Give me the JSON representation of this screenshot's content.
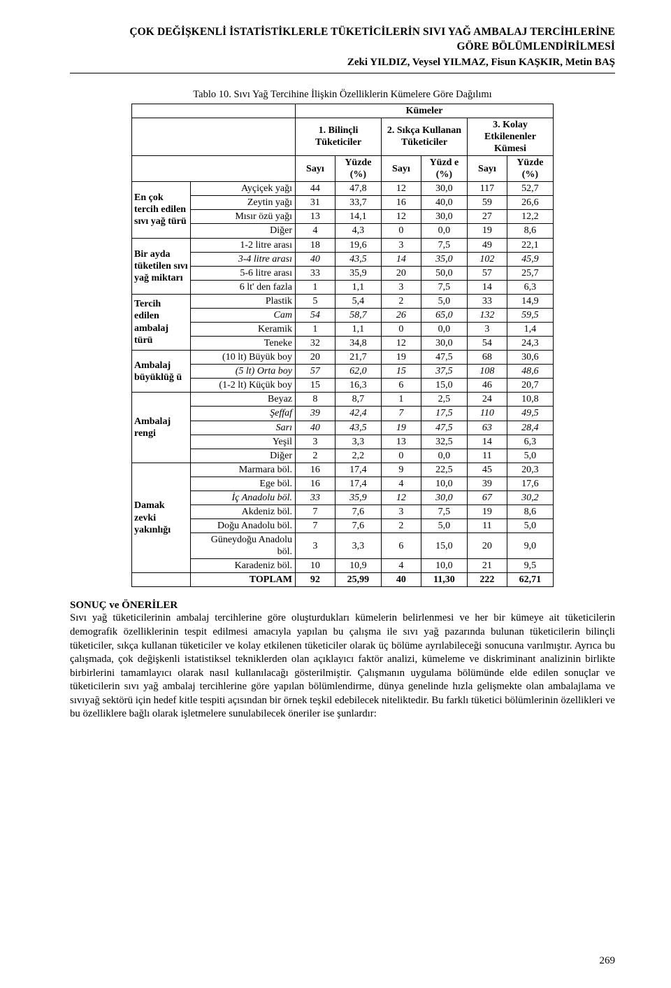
{
  "header": {
    "title_line1": "ÇOK DEĞİŞKENLİ İSTATİSTİKLERLE TÜKETİCİLERİN SIVI YAĞ AMBALAJ TERCİHLERİNE",
    "title_line2": "GÖRE BÖLÜMLENDİRİLMESİ",
    "authors": "Zeki YILDIZ, Veysel YILMAZ, Fisun KAŞKIR, Metin BAŞ"
  },
  "table": {
    "caption": "Tablo 10. Sıvı Yağ Tercihine İlişkin Özelliklerin Kümelere Göre Dağılımı",
    "col_group_header": "Kümeler",
    "cluster_headers": {
      "c1": "1. Bilinçli Tüketiciler",
      "c2": "2. Sıkça Kullanan Tüketiciler",
      "c3": "3. Kolay Etkilenenler Kümesi"
    },
    "subheaders": {
      "sayi": "Sayı",
      "yuzde": "Yüzde (%)",
      "yuzd_e": "Yüzd e (%)"
    },
    "groups": [
      {
        "head": "En çok tercih edilen sıvı yağ türü",
        "rows": [
          {
            "label": "Ayçiçek yağı",
            "v": [
              [
                "44",
                "47,8"
              ],
              [
                "12",
                "30,0"
              ],
              [
                "117",
                "52,7"
              ]
            ]
          },
          {
            "label": "Zeytin yağı",
            "v": [
              [
                "31",
                "33,7"
              ],
              [
                "16",
                "40,0"
              ],
              [
                "59",
                "26,6"
              ]
            ]
          },
          {
            "label": "Mısır özü yağı",
            "v": [
              [
                "13",
                "14,1"
              ],
              [
                "12",
                "30,0"
              ],
              [
                "27",
                "12,2"
              ]
            ]
          },
          {
            "label": "Diğer",
            "v": [
              [
                "4",
                "4,3"
              ],
              [
                "0",
                "0,0"
              ],
              [
                "19",
                "8,6"
              ]
            ]
          }
        ]
      },
      {
        "head": "Bir ayda tüketilen sıvı yağ miktarı",
        "rows": [
          {
            "label": "1-2 litre arası",
            "v": [
              [
                "18",
                "19,6"
              ],
              [
                "3",
                "7,5"
              ],
              [
                "49",
                "22,1"
              ]
            ]
          },
          {
            "label": "3-4 litre arası",
            "italic": true,
            "v": [
              [
                "40",
                "43,5"
              ],
              [
                "14",
                "35,0"
              ],
              [
                "102",
                "45,9"
              ]
            ]
          },
          {
            "label": "5-6 litre arası",
            "v": [
              [
                "33",
                "35,9"
              ],
              [
                "20",
                "50,0"
              ],
              [
                "57",
                "25,7"
              ]
            ]
          },
          {
            "label": "6 lt' den fazla",
            "v": [
              [
                "1",
                "1,1"
              ],
              [
                "3",
                "7,5"
              ],
              [
                "14",
                "6,3"
              ]
            ]
          }
        ]
      },
      {
        "head": "Tercih edilen ambalaj türü",
        "rows": [
          {
            "label": "Plastik",
            "v": [
              [
                "5",
                "5,4"
              ],
              [
                "2",
                "5,0"
              ],
              [
                "33",
                "14,9"
              ]
            ]
          },
          {
            "label": "Cam",
            "italic": true,
            "v": [
              [
                "54",
                "58,7"
              ],
              [
                "26",
                "65,0"
              ],
              [
                "132",
                "59,5"
              ]
            ]
          },
          {
            "label": "Keramik",
            "v": [
              [
                "1",
                "1,1"
              ],
              [
                "0",
                "0,0"
              ],
              [
                "3",
                "1,4"
              ]
            ]
          },
          {
            "label": "Teneke",
            "v": [
              [
                "32",
                "34,8"
              ],
              [
                "12",
                "30,0"
              ],
              [
                "54",
                "24,3"
              ]
            ]
          }
        ]
      },
      {
        "head": "Ambalaj büyüklüğ ü",
        "rows": [
          {
            "label": "(10 lt) Büyük boy",
            "v": [
              [
                "20",
                "21,7"
              ],
              [
                "19",
                "47,5"
              ],
              [
                "68",
                "30,6"
              ]
            ]
          },
          {
            "label": "(5 lt) Orta boy",
            "italic": true,
            "v": [
              [
                "57",
                "62,0"
              ],
              [
                "15",
                "37,5"
              ],
              [
                "108",
                "48,6"
              ]
            ]
          },
          {
            "label": "(1-2 lt) Küçük boy",
            "v": [
              [
                "15",
                "16,3"
              ],
              [
                "6",
                "15,0"
              ],
              [
                "46",
                "20,7"
              ]
            ]
          }
        ]
      },
      {
        "head": "Ambalaj rengi",
        "rows": [
          {
            "label": "Beyaz",
            "v": [
              [
                "8",
                "8,7"
              ],
              [
                "1",
                "2,5"
              ],
              [
                "24",
                "10,8"
              ]
            ]
          },
          {
            "label": "Şeffaf",
            "italic": true,
            "v": [
              [
                "39",
                "42,4"
              ],
              [
                "7",
                "17,5"
              ],
              [
                "110",
                "49,5"
              ]
            ]
          },
          {
            "label": "Sarı",
            "italic": true,
            "v": [
              [
                "40",
                "43,5"
              ],
              [
                "19",
                "47,5"
              ],
              [
                "63",
                "28,4"
              ]
            ]
          },
          {
            "label": "Yeşil",
            "v": [
              [
                "3",
                "3,3"
              ],
              [
                "13",
                "32,5"
              ],
              [
                "14",
                "6,3"
              ]
            ]
          },
          {
            "label": "Diğer",
            "v": [
              [
                "2",
                "2,2"
              ],
              [
                "0",
                "0,0"
              ],
              [
                "11",
                "5,0"
              ]
            ]
          }
        ]
      },
      {
        "head": "Damak zevki yakınlığı",
        "rows": [
          {
            "label": "Marmara böl.",
            "v": [
              [
                "16",
                "17,4"
              ],
              [
                "9",
                "22,5"
              ],
              [
                "45",
                "20,3"
              ]
            ]
          },
          {
            "label": "Ege böl.",
            "v": [
              [
                "16",
                "17,4"
              ],
              [
                "4",
                "10,0"
              ],
              [
                "39",
                "17,6"
              ]
            ]
          },
          {
            "label": "İç Anadolu böl.",
            "italic": true,
            "v": [
              [
                "33",
                "35,9"
              ],
              [
                "12",
                "30,0"
              ],
              [
                "67",
                "30,2"
              ]
            ]
          },
          {
            "label": "Akdeniz böl.",
            "v": [
              [
                "7",
                "7,6"
              ],
              [
                "3",
                "7,5"
              ],
              [
                "19",
                "8,6"
              ]
            ]
          },
          {
            "label": "Doğu Anadolu böl.",
            "v": [
              [
                "7",
                "7,6"
              ],
              [
                "2",
                "5,0"
              ],
              [
                "11",
                "5,0"
              ]
            ]
          },
          {
            "label": "Güneydoğu Anadolu böl.",
            "v": [
              [
                "3",
                "3,3"
              ],
              [
                "6",
                "15,0"
              ],
              [
                "20",
                "9,0"
              ]
            ]
          },
          {
            "label": "Karadeniz böl.",
            "v": [
              [
                "10",
                "10,9"
              ],
              [
                "4",
                "10,0"
              ],
              [
                "21",
                "9,5"
              ]
            ]
          }
        ]
      }
    ],
    "totals": {
      "label": "TOPLAM",
      "v": [
        [
          "92",
          "25,99"
        ],
        [
          "40",
          "11,30"
        ],
        [
          "222",
          "62,71"
        ]
      ]
    },
    "col_widths": {
      "rowhead": 84,
      "rowlabel": 150,
      "num": 48,
      "pct": 56
    },
    "font_size": 14,
    "border_color": "#000000"
  },
  "conclusion": {
    "heading": "SONUÇ ve ÖNERİLER",
    "text": "Sıvı yağ tüketicilerinin ambalaj tercihlerine göre oluşturdukları kümelerin belirlenmesi ve her bir kümeye ait tüketicilerin demografik özelliklerinin tespit edilmesi amacıyla yapılan bu çalışma ile sıvı yağ pazarında bulunan tüketicilerin bilinçli tüketiciler, sıkça kullanan tüketiciler ve kolay etkilenen tüketiciler olarak üç bölüme ayrılabileceği sonucuna varılmıştır. Ayrıca bu çalışmada, çok değişkenli istatistiksel tekniklerden olan açıklayıcı faktör analizi, kümeleme ve diskriminant analizinin birlikte birbirlerini tamamlayıcı olarak nasıl kullanılacağı gösterilmiştir. Çalışmanın uygulama bölümünde elde edilen sonuçlar ve tüketicilerin sıvı yağ ambalaj tercihlerine göre yapılan bölümlendirme, dünya genelinde hızla gelişmekte olan ambalajlama ve sıvıyağ sektörü için hedef kitle tespiti açısından bir örnek teşkil edebilecek niteliktedir. Bu farklı tüketici bölümlerinin özellikleri ve bu özelliklere bağlı olarak işletmelere sunulabilecek öneriler ise şunlardır:"
  },
  "page_number": "269"
}
